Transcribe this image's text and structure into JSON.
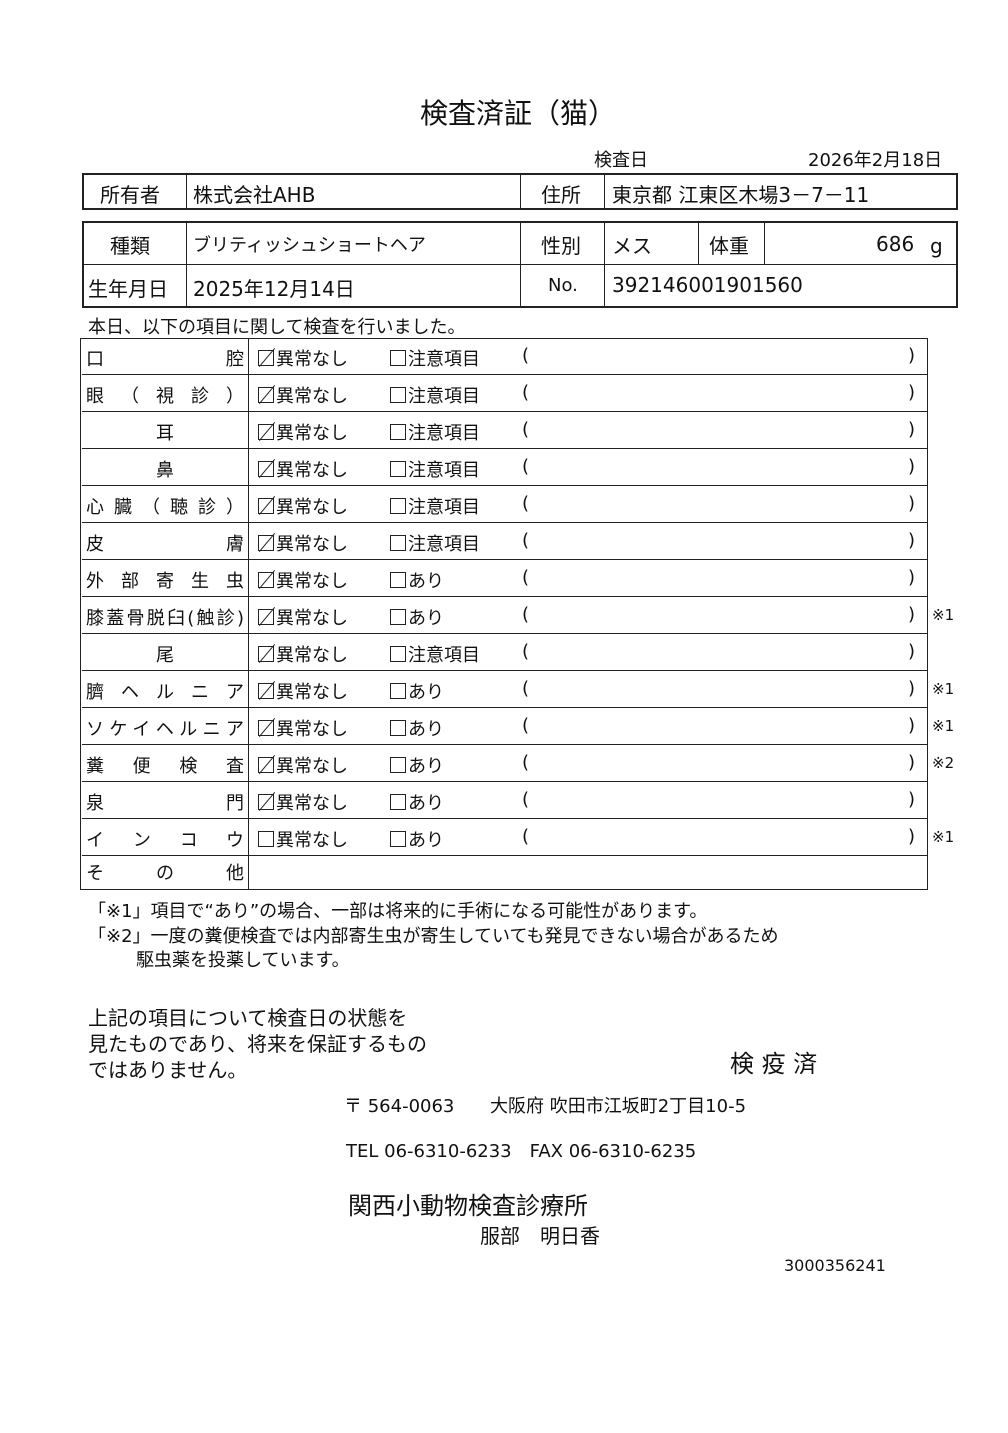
{
  "title": "検査済証（猫）",
  "inspection_date_label": "検査日",
  "inspection_date": "2026年2月18日",
  "owner": {
    "label": "所有者",
    "value": "株式会社AHB"
  },
  "address": {
    "label": "住所",
    "value": "東京都 江東区木場3－7－11"
  },
  "breed": {
    "label": "種類",
    "value": "ブリティッシュショートヘア"
  },
  "sex": {
    "label": "性別",
    "value": "メス"
  },
  "weight": {
    "label": "体重",
    "value": "686",
    "unit": "g"
  },
  "birthdate": {
    "label": "生年月日",
    "value": "2025年12月14日"
  },
  "number": {
    "label": "No.",
    "value": "392146001901560"
  },
  "intro": "本日、以下の項目に関して検査を行いました。",
  "option1": "異常なし",
  "paren_open": "(",
  "paren_close": ")",
  "items": [
    {
      "label": "口腔",
      "opt2": "注意項目",
      "checked": true,
      "note": ""
    },
    {
      "label": "眼（視診）",
      "opt2": "注意項目",
      "checked": true,
      "note": ""
    },
    {
      "label": "耳",
      "opt2": "注意項目",
      "checked": true,
      "note": ""
    },
    {
      "label": "鼻",
      "opt2": "注意項目",
      "checked": true,
      "note": ""
    },
    {
      "label": "心臓（聴診）",
      "opt2": "注意項目",
      "checked": true,
      "note": ""
    },
    {
      "label": "皮膚",
      "opt2": "注意項目",
      "checked": true,
      "note": ""
    },
    {
      "label": "外部寄生虫",
      "opt2": "あり",
      "checked": true,
      "note": ""
    },
    {
      "label": "膝蓋骨脱臼(触診)",
      "opt2": "あり",
      "checked": true,
      "note": "※1"
    },
    {
      "label": "尾",
      "opt2": "注意項目",
      "checked": true,
      "note": ""
    },
    {
      "label": "臍ヘルニア",
      "opt2": "あり",
      "checked": true,
      "note": "※1"
    },
    {
      "label": "ソケイヘルニア",
      "opt2": "あり",
      "checked": true,
      "note": "※1"
    },
    {
      "label": "糞便検査",
      "opt2": "あり",
      "checked": true,
      "note": "※2"
    },
    {
      "label": "泉門",
      "opt2": "あり",
      "checked": true,
      "note": ""
    },
    {
      "label": "インコウ",
      "opt2": "あり",
      "checked": false,
      "note": "※1"
    }
  ],
  "other_label": "その他",
  "footnote1": "「※1」項目で“あり”の場合、一部は将来的に手術になる可能性があります。",
  "footnote2a": "「※2」一度の糞便検査では内部寄生虫が寄生していても発見できない場合があるため",
  "footnote2b": "駆虫薬を投薬しています。",
  "disclaimer": [
    "上記の項目について検査日の状態を",
    "見たものであり、将来を保証するもの",
    "ではありません。"
  ],
  "stamp": "検 疫 済",
  "postal": "〒 564-0063",
  "clinic_address": "大阪府 吹田市江坂町2丁目10-5",
  "tel_fax": "TEL 06-6310-6233　FAX 06-6310-6235",
  "clinic_name": "関西小動物検査診療所",
  "vet_name": "服部　明日香",
  "serial": "3000356241"
}
